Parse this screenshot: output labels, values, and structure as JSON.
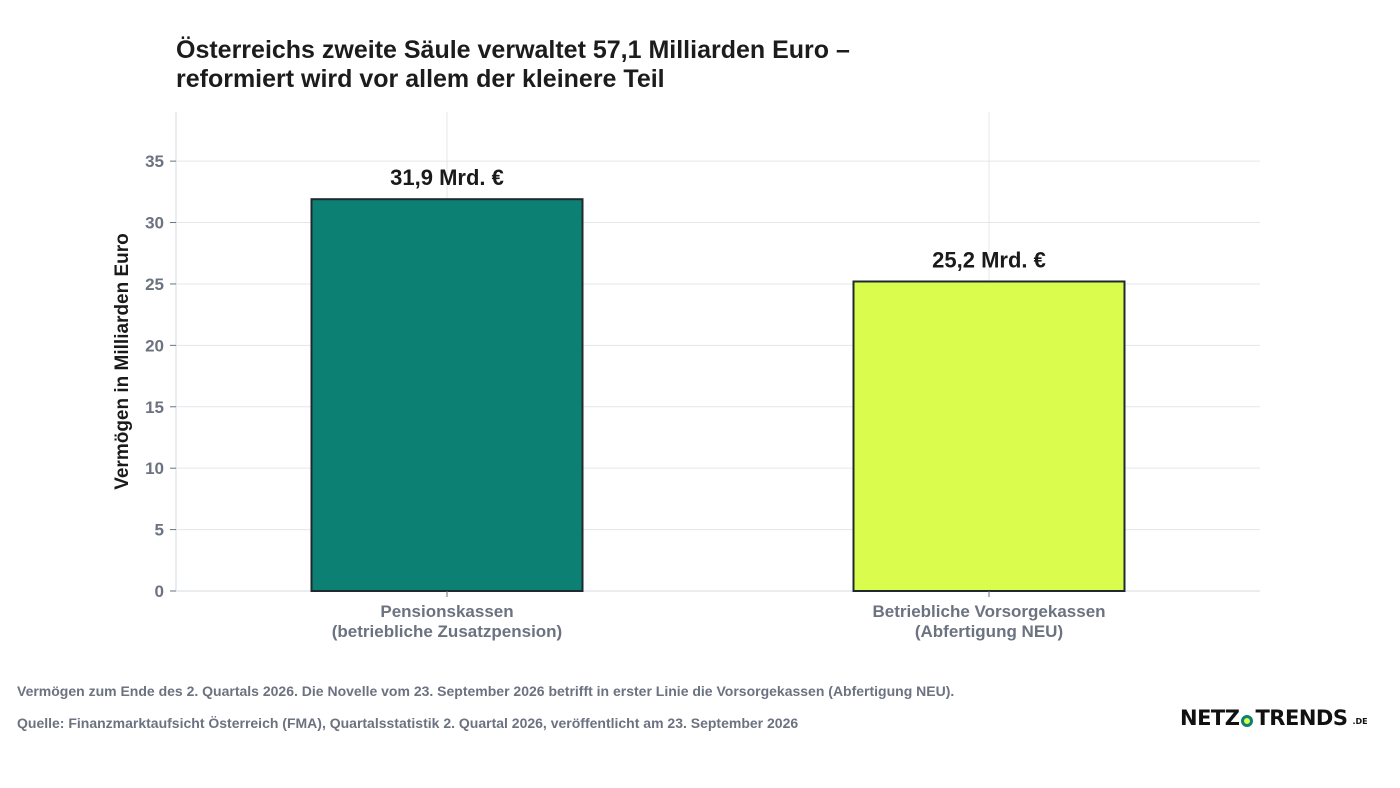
{
  "chart_data": {
    "type": "bar",
    "title_lines": [
      "Österreichs zweite Säule verwaltet 57,1 Milliarden Euro –",
      "reformiert wird vor allem der kleinere Teil"
    ],
    "categories": [
      [
        "Pensionskassen",
        "(betriebliche Zusatzpension)"
      ],
      [
        "Betriebliche Vorsorgekassen",
        "(Abfertigung NEU)"
      ]
    ],
    "values": [
      31.9,
      25.2
    ],
    "data_labels": [
      "31,9 Mrd. €",
      "25,2 Mrd. €"
    ],
    "bar_colors": [
      "#0c8073",
      "#dafc4d"
    ],
    "bar_edge_color": "#1f2a30",
    "xlabel": "",
    "ylabel": "Vermögen in Milliarden Euro",
    "ylim": [
      0,
      39
    ],
    "yticks": [
      0,
      5,
      10,
      15,
      20,
      25,
      30,
      35
    ],
    "grid": true,
    "legend": "none"
  },
  "notes": {
    "line1": "Vermögen zum Ende des 2. Quartals 2026. Die Novelle vom 23. September 2026 betrifft in erster Linie die Vorsorgekassen (Abfertigung NEU).",
    "line2": "Quelle: Finanzmarktaufsicht Österreich (FMA), Quartalsstatistik 2. Quartal 2026, veröffentlicht am 23. September 2026"
  },
  "logo": {
    "left": "NETZ",
    "right": "TRENDS",
    "tld": ".DE",
    "accent_color": "#0c8073",
    "dot_color": "#d9ff4d"
  }
}
